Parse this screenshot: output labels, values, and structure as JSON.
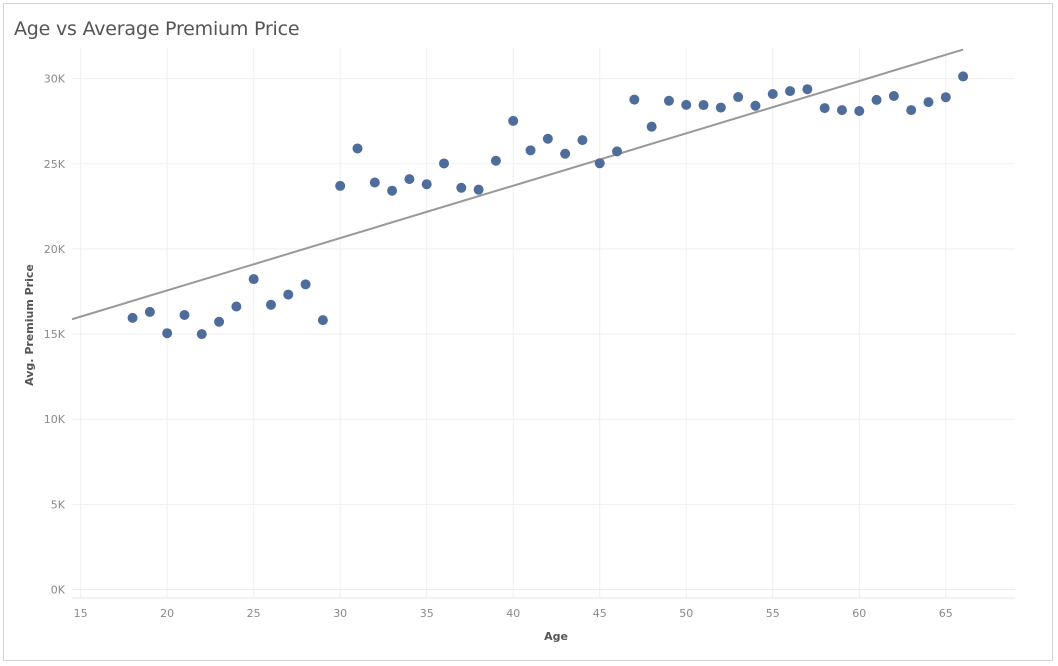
{
  "chart_data": {
    "type": "scatter",
    "title": "Age vs Average Premium Price",
    "xlabel": "Age",
    "ylabel": "Avg. Premium Price",
    "xlim": [
      14.5,
      69
    ],
    "ylim": [
      -500,
      31800
    ],
    "x_ticks": [
      15,
      20,
      25,
      30,
      35,
      40,
      45,
      50,
      55,
      60,
      65
    ],
    "x_tick_labels": [
      "15",
      "20",
      "25",
      "30",
      "35",
      "40",
      "45",
      "50",
      "55",
      "60",
      "65"
    ],
    "y_ticks": [
      0,
      5000,
      10000,
      15000,
      20000,
      25000,
      30000
    ],
    "y_tick_labels": [
      "0K",
      "5K",
      "10K",
      "15K",
      "20K",
      "25K",
      "30K"
    ],
    "grid": true,
    "marker_color": "#4e6d9a",
    "trend_color": "#999999",
    "trend_line": {
      "x": [
        14.5,
        66.0
      ],
      "y": [
        15870,
        31710
      ]
    },
    "x": [
      18,
      19,
      20,
      21,
      22,
      23,
      24,
      25,
      26,
      27,
      28,
      29,
      30,
      31,
      32,
      33,
      34,
      35,
      36,
      37,
      38,
      39,
      40,
      41,
      42,
      43,
      44,
      45,
      46,
      47,
      48,
      49,
      50,
      51,
      52,
      53,
      54,
      55,
      56,
      57,
      58,
      59,
      60,
      61,
      62,
      63,
      64,
      65,
      66
    ],
    "y": [
      15950,
      16300,
      15050,
      16120,
      15000,
      15720,
      16620,
      18230,
      16720,
      17320,
      17920,
      15820,
      23700,
      25900,
      23900,
      23420,
      24100,
      23800,
      25020,
      23590,
      23480,
      25180,
      27520,
      25790,
      26470,
      25590,
      26390,
      25030,
      25730,
      28770,
      27180,
      28700,
      28460,
      28450,
      28300,
      28920,
      28410,
      29100,
      29270,
      29380,
      28270,
      28150,
      28100,
      28750,
      28980,
      28150,
      28620,
      28910,
      30130
    ]
  }
}
